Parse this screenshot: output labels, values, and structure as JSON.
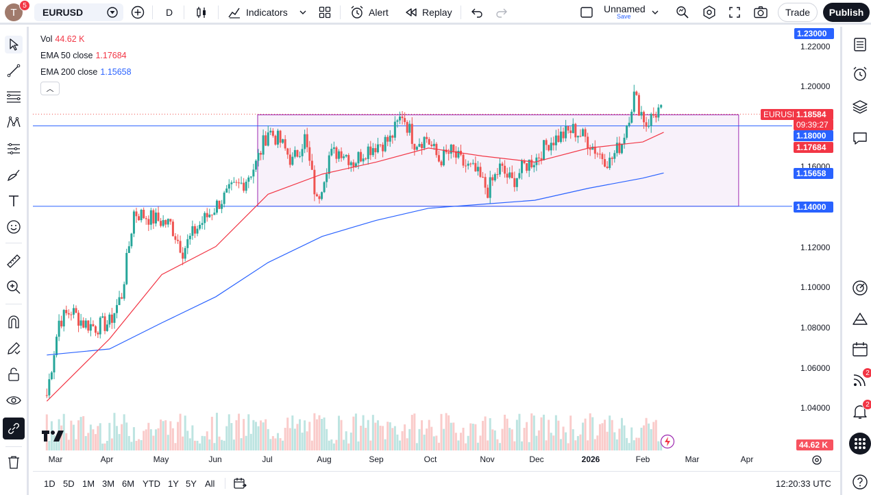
{
  "topbar": {
    "avatar_letter": "T",
    "avatar_badge": "5",
    "symbol": "EURUSD",
    "interval": "D",
    "indicators_label": "Indicators",
    "alert_label": "Alert",
    "replay_label": "Replay",
    "layout_name": "Unnamed",
    "layout_save": "Save",
    "trade_label": "Trade",
    "publish_label": "Publish"
  },
  "legend": {
    "vol_label": "Vol",
    "vol_value": "44.62 K",
    "ema50_label": "EMA 50 close",
    "ema50_value": "1.17684",
    "ema200_label": "EMA 200 close",
    "ema200_value": "1.15658",
    "collapse_glyph": "︿"
  },
  "price_axis": {
    "ticks": [
      "1.22000",
      "1.20000",
      "1.16000",
      "1.12000",
      "1.10000",
      "1.08000",
      "1.06000",
      "1.04000"
    ],
    "badges": {
      "top_level": "1.23000",
      "symbol_tag": "EURUSD",
      "last_price": "1.18584",
      "countdown": "09:39:27",
      "hline_upper": "1.18000",
      "ema50": "1.17684",
      "ema200": "1.15658",
      "hline_lower": "1.14000",
      "volume": "44.62 K"
    }
  },
  "time_axis": [
    "Mar",
    "Apr",
    "May",
    "Jun",
    "Jul",
    "Aug",
    "Sep",
    "Oct",
    "Nov",
    "Dec",
    "2026",
    "Feb",
    "Mar",
    "Apr"
  ],
  "chart_data": {
    "type": "candlestick",
    "symbol": "EURUSD",
    "interval": "1D",
    "ylim": [
      1.03,
      1.235
    ],
    "horizontal_lines": [
      1.18,
      1.14
    ],
    "range_box": {
      "from": "2025-06-25",
      "to": "2026-03-28",
      "low": 1.14,
      "high": 1.1855
    },
    "close_series": [
      {
        "date": "2025-02-24",
        "close": 1.046
      },
      {
        "date": "2025-03-03",
        "close": 1.083
      },
      {
        "date": "2025-03-10",
        "close": 1.088
      },
      {
        "date": "2025-03-17",
        "close": 1.082
      },
      {
        "date": "2025-03-24",
        "close": 1.08
      },
      {
        "date": "2025-04-01",
        "close": 1.082
      },
      {
        "date": "2025-04-08",
        "close": 1.096
      },
      {
        "date": "2025-04-15",
        "close": 1.137
      },
      {
        "date": "2025-04-22",
        "close": 1.135
      },
      {
        "date": "2025-04-29",
        "close": 1.133
      },
      {
        "date": "2025-05-06",
        "close": 1.131
      },
      {
        "date": "2025-05-13",
        "close": 1.118
      },
      {
        "date": "2025-05-20",
        "close": 1.128
      },
      {
        "date": "2025-05-27",
        "close": 1.135
      },
      {
        "date": "2025-06-03",
        "close": 1.142
      },
      {
        "date": "2025-06-10",
        "close": 1.148
      },
      {
        "date": "2025-06-17",
        "close": 1.152
      },
      {
        "date": "2025-06-24",
        "close": 1.161
      },
      {
        "date": "2025-07-01",
        "close": 1.178
      },
      {
        "date": "2025-07-08",
        "close": 1.172
      },
      {
        "date": "2025-07-15",
        "close": 1.162
      },
      {
        "date": "2025-07-22",
        "close": 1.174
      },
      {
        "date": "2025-07-29",
        "close": 1.142
      },
      {
        "date": "2025-08-05",
        "close": 1.165
      },
      {
        "date": "2025-08-12",
        "close": 1.168
      },
      {
        "date": "2025-08-19",
        "close": 1.162
      },
      {
        "date": "2025-08-26",
        "close": 1.168
      },
      {
        "date": "2025-09-02",
        "close": 1.171
      },
      {
        "date": "2025-09-09",
        "close": 1.173
      },
      {
        "date": "2025-09-16",
        "close": 1.186
      },
      {
        "date": "2025-09-23",
        "close": 1.172
      },
      {
        "date": "2025-09-30",
        "close": 1.174
      },
      {
        "date": "2025-10-07",
        "close": 1.163
      },
      {
        "date": "2025-10-14",
        "close": 1.167
      },
      {
        "date": "2025-10-21",
        "close": 1.161
      },
      {
        "date": "2025-10-28",
        "close": 1.157
      },
      {
        "date": "2025-11-04",
        "close": 1.148
      },
      {
        "date": "2025-11-11",
        "close": 1.159
      },
      {
        "date": "2025-11-18",
        "close": 1.152
      },
      {
        "date": "2025-11-25",
        "close": 1.16
      },
      {
        "date": "2025-12-02",
        "close": 1.164
      },
      {
        "date": "2025-12-09",
        "close": 1.172
      },
      {
        "date": "2025-12-16",
        "close": 1.175
      },
      {
        "date": "2025-12-23",
        "close": 1.178
      },
      {
        "date": "2025-12-30",
        "close": 1.174
      },
      {
        "date": "2026-01-06",
        "close": 1.167
      },
      {
        "date": "2026-01-13",
        "close": 1.162
      },
      {
        "date": "2026-01-20",
        "close": 1.172
      },
      {
        "date": "2026-01-27",
        "close": 1.195
      },
      {
        "date": "2026-02-03",
        "close": 1.181
      },
      {
        "date": "2026-02-10",
        "close": 1.188
      },
      {
        "date": "2026-02-13",
        "close": 1.18584
      }
    ],
    "ema50": [
      {
        "date": "2025-02-24",
        "value": 1.043
      },
      {
        "date": "2025-04-01",
        "value": 1.074
      },
      {
        "date": "2025-05-01",
        "value": 1.106
      },
      {
        "date": "2025-06-01",
        "value": 1.12
      },
      {
        "date": "2025-07-01",
        "value": 1.146
      },
      {
        "date": "2025-08-01",
        "value": 1.156
      },
      {
        "date": "2025-09-01",
        "value": 1.162
      },
      {
        "date": "2025-10-01",
        "value": 1.169
      },
      {
        "date": "2025-11-01",
        "value": 1.165
      },
      {
        "date": "2025-12-01",
        "value": 1.162
      },
      {
        "date": "2026-01-01",
        "value": 1.169
      },
      {
        "date": "2026-02-01",
        "value": 1.172
      },
      {
        "date": "2026-02-13",
        "value": 1.17684
      }
    ],
    "ema200": [
      {
        "date": "2025-02-24",
        "value": 1.066
      },
      {
        "date": "2025-04-01",
        "value": 1.069
      },
      {
        "date": "2025-05-01",
        "value": 1.082
      },
      {
        "date": "2025-06-01",
        "value": 1.095
      },
      {
        "date": "2025-07-01",
        "value": 1.112
      },
      {
        "date": "2025-08-01",
        "value": 1.125
      },
      {
        "date": "2025-09-01",
        "value": 1.133
      },
      {
        "date": "2025-10-01",
        "value": 1.139
      },
      {
        "date": "2025-11-01",
        "value": 1.141
      },
      {
        "date": "2025-12-01",
        "value": 1.143
      },
      {
        "date": "2026-01-01",
        "value": 1.149
      },
      {
        "date": "2026-02-01",
        "value": 1.154
      },
      {
        "date": "2026-02-13",
        "value": 1.15658
      }
    ],
    "last_volume": "44.62 K"
  },
  "bottombar": {
    "ranges": [
      "1D",
      "5D",
      "1M",
      "3M",
      "6M",
      "YTD",
      "1Y",
      "5Y",
      "All"
    ],
    "clock": "12:20:33 UTC"
  },
  "rightbar": {
    "badge_feed": "2",
    "badge_alerts": "2"
  },
  "colors": {
    "up": "#26a69a",
    "down": "#ef5350",
    "ema50": "#f23645",
    "ema200": "#2962ff",
    "hline": "#2962ff",
    "box_fill": "#f3e5f5",
    "box_stroke": "#9c27b0",
    "badge_blue": "#2962ff",
    "badge_red": "#f23645"
  }
}
